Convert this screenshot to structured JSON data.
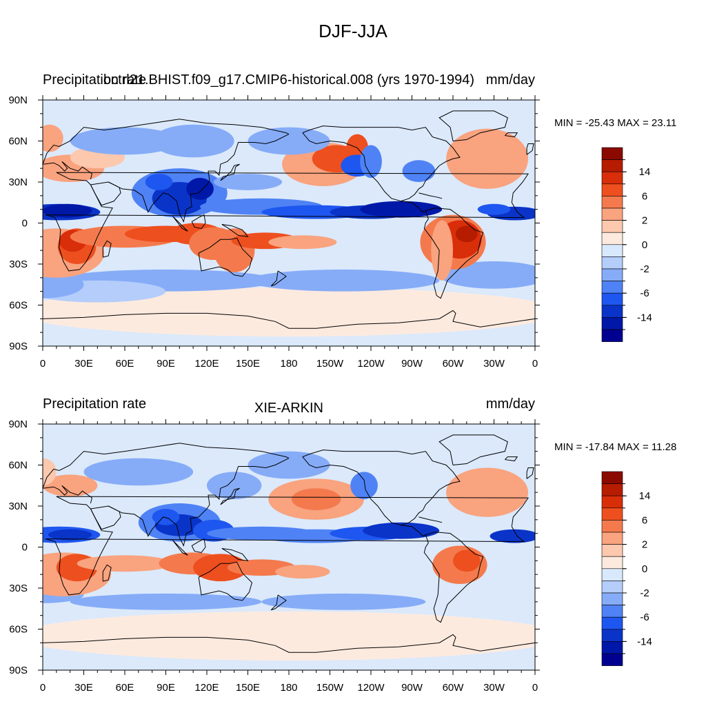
{
  "page": {
    "title": "DJF-JJA"
  },
  "colormap": {
    "colors": [
      "#000090",
      "#0018a8",
      "#0a34c8",
      "#1e56f0",
      "#4f82f5",
      "#86acf8",
      "#b4cdfb",
      "#d9e9fd",
      "#fdeadf",
      "#fcc8ae",
      "#f9a37f",
      "#f47a4d",
      "#ee4f1e",
      "#d92e0a",
      "#b61c00",
      "#8b0a00"
    ],
    "tick_labels": [
      "14",
      "6",
      "2",
      "0",
      "-2",
      "-6",
      "-14"
    ],
    "coastline_color": "#000000",
    "background_color": "#dbe9fb"
  },
  "panels": [
    {
      "left_title": "Precipitation rate",
      "center_title": "bctrl21.BHIST.f09_g17.CMIP6-historical.008 (yrs 1970-1994)",
      "right_title": "mm/day",
      "min_max": "MIN = -25.43 MAX =  23.11",
      "x_tick_labels": [
        "0",
        "30E",
        "60E",
        "90E",
        "120E",
        "150E",
        "180",
        "150W",
        "120W",
        "90W",
        "60W",
        "30W",
        "0"
      ],
      "y_tick_labels": [
        "90N",
        "60N",
        "30N",
        "0",
        "30S",
        "60S",
        "90S"
      ]
    },
    {
      "left_title": "Precipitation rate",
      "center_title": "XIE-ARKIN",
      "right_title": "mm/day",
      "min_max": "MIN = -17.84 MAX =  11.28",
      "x_tick_labels": [
        "0",
        "30E",
        "60E",
        "90E",
        "120E",
        "150E",
        "180",
        "150W",
        "120W",
        "90W",
        "60W",
        "30W",
        "0"
      ],
      "y_tick_labels": [
        "90N",
        "60N",
        "30N",
        "0",
        "30S",
        "60S",
        "90S"
      ]
    }
  ],
  "chart_data": [
    {
      "type": "heatmap",
      "projection": "cylindrical-equidistant",
      "lon_range": [
        0,
        360
      ],
      "lat_range": [
        -90,
        90
      ],
      "units": "mm/day",
      "min": -25.43,
      "max": 23.11,
      "features": [
        {
          "lon": 25,
          "lat": -17,
          "value": 8
        },
        {
          "lon": 112,
          "lat": -8,
          "value": 7
        },
        {
          "lon": 163,
          "lat": -13,
          "value": 6
        },
        {
          "lon": 300,
          "lat": -14,
          "value": 12
        },
        {
          "lon": 205,
          "lat": 43,
          "value": 5
        },
        {
          "lon": 325,
          "lat": 47,
          "value": 3
        },
        {
          "lon": 100,
          "lat": 20,
          "value": -10
        },
        {
          "lon": 260,
          "lat": 10,
          "value": -12
        },
        {
          "lon": 12,
          "lat": 8,
          "value": -9
        },
        {
          "lon": 180,
          "lat": 10,
          "value": -5
        },
        {
          "lon": 230,
          "lat": 45,
          "value": -5
        },
        {
          "lon": 90,
          "lat": -40,
          "value": -3
        }
      ]
    },
    {
      "type": "heatmap",
      "projection": "cylindrical-equidistant",
      "lon_range": [
        0,
        360
      ],
      "lat_range": [
        -90,
        90
      ],
      "units": "mm/day",
      "min": -17.84,
      "max": 11.28,
      "features": [
        {
          "lon": 25,
          "lat": -15,
          "value": 7
        },
        {
          "lon": 130,
          "lat": -15,
          "value": 6
        },
        {
          "lon": 305,
          "lat": -13,
          "value": 7
        },
        {
          "lon": 200,
          "lat": 35,
          "value": 4
        },
        {
          "lon": 325,
          "lat": 40,
          "value": 3
        },
        {
          "lon": 100,
          "lat": 18,
          "value": -9
        },
        {
          "lon": 260,
          "lat": 12,
          "value": -9
        },
        {
          "lon": 12,
          "lat": 9,
          "value": -8
        },
        {
          "lon": 175,
          "lat": 8,
          "value": -4
        }
      ]
    }
  ]
}
